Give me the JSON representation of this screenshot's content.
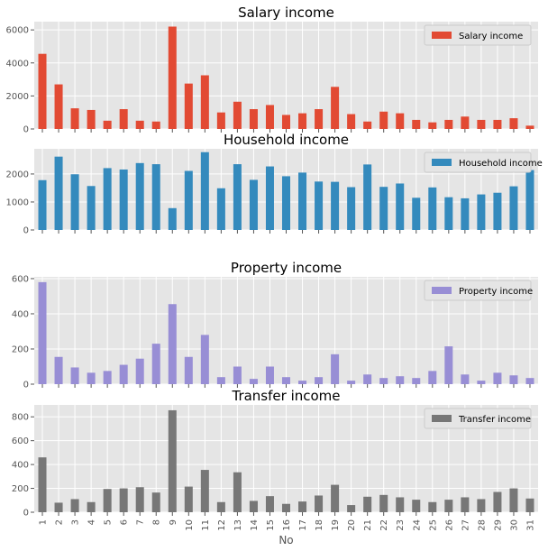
{
  "chart_data": {
    "type": "bar",
    "xlabel": "No",
    "categories": [
      "1",
      "2",
      "3",
      "4",
      "5",
      "6",
      "7",
      "8",
      "9",
      "10",
      "11",
      "12",
      "13",
      "14",
      "15",
      "16",
      "17",
      "18",
      "19",
      "20",
      "21",
      "22",
      "23",
      "24",
      "25",
      "26",
      "27",
      "28",
      "29",
      "30",
      "31"
    ],
    "grid": true,
    "legend_position": "top-right",
    "panels": [
      {
        "title": "Salary income",
        "series_name": "Salary income",
        "color": "#E24A33",
        "ylim": [
          0,
          6500
        ],
        "yticks": [
          0,
          2000,
          4000,
          6000
        ],
        "values": [
          4550,
          2700,
          1250,
          1150,
          500,
          1200,
          500,
          450,
          6200,
          2750,
          3250,
          1000,
          1650,
          1200,
          1450,
          850,
          950,
          1200,
          2550,
          900,
          450,
          1050,
          950,
          550,
          400,
          550,
          750,
          550,
          550,
          650,
          200
        ]
      },
      {
        "title": "Household income",
        "series_name": "Household income",
        "color": "#348ABD",
        "ylim": [
          0,
          2900
        ],
        "yticks": [
          0,
          1000,
          2000
        ],
        "values": [
          1780,
          2620,
          1990,
          1570,
          2210,
          2160,
          2390,
          2350,
          780,
          2110,
          2780,
          1490,
          2350,
          1790,
          2270,
          1920,
          2050,
          1730,
          1720,
          1530,
          2340,
          1540,
          1660,
          1150,
          1520,
          1170,
          1130,
          1270,
          1330,
          1560,
          2140
        ]
      },
      {
        "title": "Property income",
        "series_name": "Property income",
        "color": "#988ED5",
        "ylim": [
          0,
          610
        ],
        "yticks": [
          0,
          200,
          400,
          600
        ],
        "values": [
          580,
          155,
          95,
          65,
          75,
          110,
          145,
          230,
          455,
          155,
          280,
          40,
          100,
          30,
          100,
          40,
          20,
          40,
          170,
          20,
          55,
          35,
          45,
          35,
          75,
          215,
          55,
          20,
          65,
          50,
          35
        ]
      },
      {
        "title": "Transfer income",
        "series_name": "Transfer income",
        "color": "#777777",
        "ylim": [
          0,
          900
        ],
        "yticks": [
          0,
          200,
          400,
          600,
          800
        ],
        "values": [
          460,
          80,
          110,
          85,
          195,
          200,
          210,
          165,
          855,
          215,
          355,
          85,
          335,
          95,
          135,
          70,
          90,
          140,
          230,
          60,
          130,
          145,
          125,
          105,
          85,
          105,
          125,
          110,
          170,
          200,
          115
        ]
      }
    ]
  }
}
